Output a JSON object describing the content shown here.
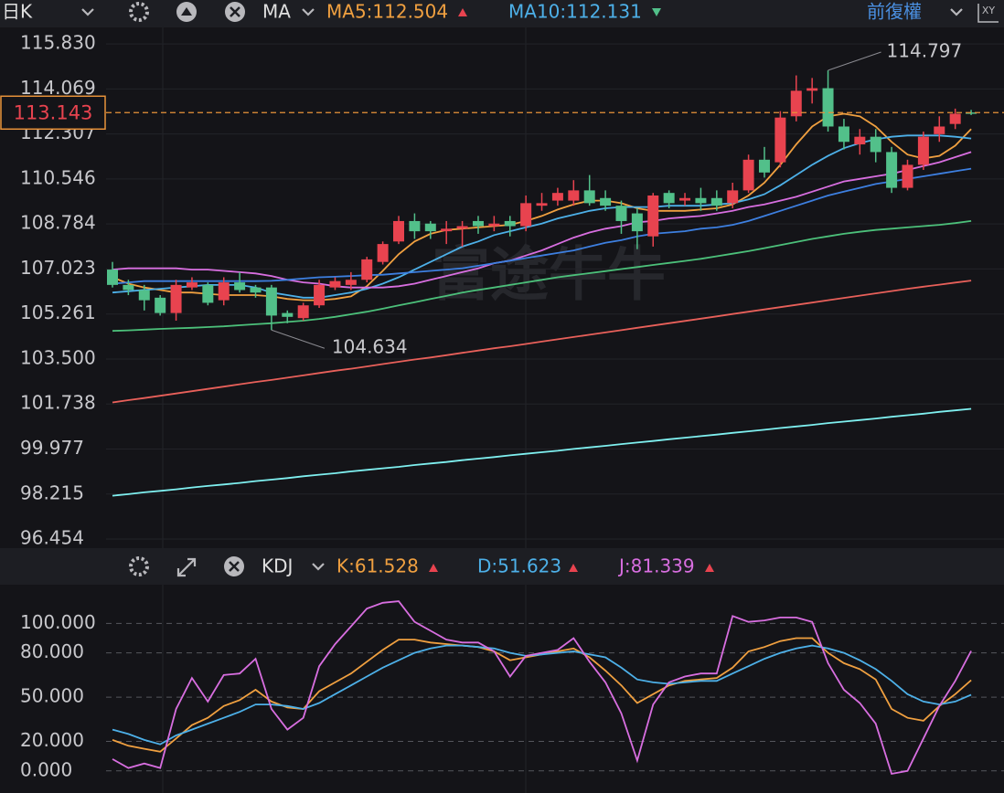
{
  "toolbar": {
    "period": "日K",
    "indicator": "MA",
    "ma5": "MA5:112.504",
    "ma10": "MA10:112.131",
    "adjust": "前復權",
    "xy": "XY"
  },
  "watermark": "富途牛牛",
  "indicator_bar": {
    "name": "KDJ",
    "k": "K:61.528",
    "d": "D:51.623",
    "j": "J:81.339"
  },
  "chart_data": [
    {
      "type": "candlestick",
      "ylim": [
        96.454,
        116.3
      ],
      "yticks": [
        {
          "value": 115.83,
          "label": "115.830"
        },
        114.069,
        112.307,
        110.546,
        108.784,
        107.023,
        105.261,
        {
          "value": 103.5,
          "label": "103.500"
        },
        101.738,
        99.977,
        98.215,
        96.454
      ],
      "current": 113.143,
      "high_label": 114.797,
      "low_label": 104.634,
      "up_color": "#e8434f",
      "down_color": "#52c08a",
      "current_color": "#e8933a",
      "open": [
        107.0,
        106.4,
        106.2,
        105.9,
        105.3,
        106.3,
        106.4,
        105.8,
        106.5,
        106.3,
        106.3,
        105.3,
        105.1,
        105.6,
        106.3,
        106.4,
        106.6,
        107.3,
        108.1,
        108.9,
        108.8,
        108.5,
        108.6,
        108.9,
        108.7,
        108.9,
        108.7,
        109.5,
        109.7,
        109.7,
        110.1,
        109.8,
        109.5,
        109.2,
        108.3,
        110.0,
        109.7,
        109.8,
        109.8,
        109.6,
        110.1,
        111.3,
        111.2,
        113.0,
        114.0,
        114.1,
        112.6,
        111.9,
        112.2,
        111.6,
        110.2,
        111.1,
        112.3,
        112.7,
        113.15
      ],
      "high": [
        107.3,
        106.6,
        106.4,
        106.0,
        106.6,
        106.7,
        106.5,
        106.7,
        106.9,
        106.4,
        106.4,
        105.4,
        105.7,
        106.6,
        106.7,
        106.9,
        107.5,
        108.1,
        109.1,
        109.2,
        108.9,
        108.9,
        108.9,
        109.1,
        109.1,
        109.1,
        109.9,
        110.0,
        110.2,
        110.5,
        110.7,
        110.1,
        109.7,
        109.4,
        110.0,
        110.1,
        110.0,
        110.2,
        110.1,
        110.4,
        111.5,
        111.8,
        113.2,
        114.6,
        114.5,
        114.797,
        112.9,
        112.5,
        112.5,
        111.8,
        111.3,
        112.4,
        113.0,
        113.3,
        113.25
      ],
      "low": [
        106.3,
        106.0,
        105.4,
        105.2,
        105.0,
        106.2,
        105.6,
        105.6,
        106.1,
        105.9,
        104.634,
        104.9,
        105.0,
        105.5,
        106.2,
        106.2,
        106.5,
        107.2,
        108.0,
        108.2,
        108.2,
        108.0,
        107.9,
        108.4,
        108.5,
        108.3,
        108.5,
        109.3,
        109.5,
        109.5,
        109.5,
        109.3,
        108.4,
        107.8,
        107.9,
        109.4,
        109.5,
        109.3,
        109.3,
        109.4,
        110.0,
        110.6,
        111.0,
        112.8,
        113.5,
        112.4,
        111.7,
        111.5,
        111.2,
        110.0,
        110.1,
        110.9,
        112.0,
        112.5,
        113.05
      ],
      "close": [
        106.4,
        106.2,
        105.8,
        105.3,
        106.4,
        106.5,
        105.7,
        106.5,
        106.2,
        106.1,
        105.2,
        105.15,
        105.6,
        106.4,
        106.55,
        106.6,
        107.4,
        108.0,
        108.9,
        108.5,
        108.5,
        108.6,
        108.7,
        108.7,
        108.8,
        108.7,
        109.6,
        109.6,
        110.0,
        110.1,
        109.6,
        109.5,
        108.9,
        108.5,
        109.9,
        109.6,
        109.8,
        109.6,
        109.5,
        110.1,
        111.3,
        110.8,
        112.95,
        114.0,
        114.1,
        112.6,
        112.0,
        112.2,
        111.6,
        110.2,
        111.1,
        112.2,
        112.6,
        113.1,
        113.143
      ],
      "series": [
        {
          "color": "#f0a040",
          "values": [
            106.7,
            106.45,
            106.3,
            106.2,
            106.1,
            106.1,
            106.05,
            106.0,
            106.0,
            106.0,
            105.95,
            105.85,
            105.8,
            105.8,
            105.85,
            105.95,
            106.35,
            106.95,
            107.6,
            108.1,
            108.4,
            108.55,
            108.6,
            108.65,
            108.7,
            108.75,
            108.9,
            109.1,
            109.35,
            109.55,
            109.7,
            109.7,
            109.6,
            109.4,
            109.3,
            109.3,
            109.3,
            109.35,
            109.4,
            109.55,
            109.9,
            110.4,
            111.1,
            111.9,
            112.6,
            113.0,
            113.1,
            113.0,
            112.6,
            112.0,
            111.5,
            111.35,
            111.45,
            111.85,
            112.504
          ]
        },
        {
          "color": "#4db0e8",
          "values": [
            106.1,
            106.15,
            106.2,
            106.25,
            106.3,
            106.35,
            106.4,
            106.4,
            106.4,
            106.3,
            106.1,
            106.0,
            105.9,
            105.9,
            106.0,
            106.1,
            106.25,
            106.45,
            106.7,
            107.0,
            107.3,
            107.6,
            107.9,
            108.1,
            108.35,
            108.5,
            108.65,
            108.8,
            109.0,
            109.15,
            109.3,
            109.4,
            109.45,
            109.45,
            109.45,
            109.5,
            109.5,
            109.5,
            109.55,
            109.6,
            109.75,
            109.95,
            110.3,
            110.7,
            111.1,
            111.45,
            111.75,
            111.95,
            112.1,
            112.2,
            112.25,
            112.25,
            112.25,
            112.2,
            112.131
          ]
        },
        {
          "color": "#d86ee0",
          "values": [
            107.0,
            107.05,
            107.05,
            107.05,
            107.05,
            107.0,
            107.0,
            106.95,
            106.9,
            106.85,
            106.75,
            106.6,
            106.5,
            106.45,
            106.35,
            106.3,
            106.3,
            106.3,
            106.35,
            106.45,
            106.6,
            106.75,
            106.9,
            107.05,
            107.25,
            107.35,
            107.55,
            107.75,
            108.0,
            108.25,
            108.45,
            108.6,
            108.7,
            108.85,
            108.9,
            109.0,
            109.05,
            109.1,
            109.2,
            109.3,
            109.45,
            109.55,
            109.7,
            109.85,
            110.05,
            110.25,
            110.45,
            110.55,
            110.65,
            110.75,
            110.9,
            111.05,
            111.2,
            111.4,
            111.6
          ]
        },
        {
          "color": "#3d7fe0",
          "values": [
            106.45,
            106.5,
            106.55,
            106.55,
            106.55,
            106.55,
            106.55,
            106.55,
            106.55,
            106.55,
            106.56,
            106.6,
            106.65,
            106.7,
            106.72,
            106.75,
            106.78,
            106.8,
            106.85,
            106.9,
            106.95,
            107.0,
            107.05,
            107.15,
            107.25,
            107.35,
            107.45,
            107.55,
            107.65,
            107.75,
            107.9,
            108.05,
            108.15,
            108.3,
            108.4,
            108.45,
            108.5,
            108.6,
            108.65,
            108.75,
            108.9,
            109.1,
            109.3,
            109.5,
            109.7,
            109.9,
            110.05,
            110.2,
            110.35,
            110.45,
            110.55,
            110.65,
            110.75,
            110.85,
            110.95
          ]
        },
        {
          "color": "#4cc07a",
          "values": [
            104.6,
            104.62,
            104.65,
            104.68,
            104.7,
            104.72,
            104.75,
            104.78,
            104.82,
            104.86,
            104.9,
            104.95,
            105.0,
            105.07,
            105.15,
            105.25,
            105.35,
            105.47,
            105.6,
            105.72,
            105.85,
            105.97,
            106.1,
            106.2,
            106.3,
            106.4,
            106.5,
            106.6,
            106.7,
            106.78,
            106.86,
            106.94,
            107.02,
            107.1,
            107.18,
            107.26,
            107.34,
            107.42,
            107.52,
            107.62,
            107.72,
            107.84,
            107.96,
            108.08,
            108.2,
            108.3,
            108.4,
            108.48,
            108.55,
            108.6,
            108.65,
            108.7,
            108.75,
            108.82,
            108.9
          ]
        },
        {
          "color": "#e8605a",
          "values": [
            101.8,
            101.89,
            101.97,
            102.06,
            102.15,
            102.24,
            102.33,
            102.42,
            102.51,
            102.6,
            102.68,
            102.77,
            102.86,
            102.95,
            103.04,
            103.12,
            103.21,
            103.3,
            103.39,
            103.48,
            103.56,
            103.65,
            103.74,
            103.83,
            103.92,
            104.0,
            104.09,
            104.18,
            104.27,
            104.36,
            104.45,
            104.54,
            104.63,
            104.72,
            104.81,
            104.9,
            104.99,
            105.08,
            105.17,
            105.26,
            105.35,
            105.44,
            105.53,
            105.62,
            105.71,
            105.8,
            105.89,
            105.98,
            106.07,
            106.16,
            106.25,
            106.33,
            106.41,
            106.49,
            106.57
          ]
        },
        {
          "color": "#7ff0f0",
          "values": [
            98.15,
            98.21,
            98.28,
            98.34,
            98.4,
            98.47,
            98.53,
            98.59,
            98.65,
            98.72,
            98.78,
            98.84,
            98.91,
            98.97,
            99.03,
            99.1,
            99.16,
            99.22,
            99.28,
            99.35,
            99.41,
            99.47,
            99.54,
            99.6,
            99.66,
            99.73,
            99.79,
            99.85,
            99.91,
            99.98,
            100.04,
            100.1,
            100.17,
            100.23,
            100.29,
            100.36,
            100.42,
            100.48,
            100.54,
            100.61,
            100.67,
            100.73,
            100.8,
            100.86,
            100.92,
            100.99,
            101.05,
            101.11,
            101.17,
            101.24,
            101.3,
            101.36,
            101.43,
            101.49,
            101.55
          ]
        }
      ]
    },
    {
      "type": "line",
      "ylim": [
        -15,
        125
      ],
      "yticks": [
        {
          "value": 100,
          "label": "100.000"
        },
        {
          "value": 80,
          "label": "80.000"
        },
        {
          "value": 50,
          "label": "50.000"
        },
        {
          "value": 20,
          "label": "20.000"
        },
        {
          "value": 0,
          "label": "0.000"
        }
      ],
      "grid": true,
      "series": [
        {
          "color": "#f0a040",
          "values": [
            21,
            17,
            15,
            13,
            22,
            31,
            36,
            44,
            48,
            55,
            47,
            43,
            42,
            54,
            60,
            66,
            74,
            82,
            89,
            89,
            87,
            86,
            85,
            84,
            81,
            75,
            77,
            79,
            81,
            83,
            77,
            68,
            58,
            46,
            52,
            58,
            61,
            62,
            63,
            70,
            81,
            84,
            88,
            90,
            90,
            80,
            73,
            69,
            62,
            42,
            36,
            34,
            44,
            52,
            61.528
          ]
        },
        {
          "color": "#4db0e8",
          "values": [
            28,
            25,
            21,
            18,
            24,
            28,
            32,
            36,
            40,
            45,
            45,
            44,
            42,
            46,
            52,
            58,
            64,
            70,
            75,
            80,
            83,
            85,
            85,
            84,
            83,
            80,
            78,
            79,
            80,
            81,
            79,
            77,
            70,
            62,
            60,
            59,
            60,
            61,
            61,
            66,
            71,
            76,
            80,
            83,
            85,
            83,
            80,
            75,
            69,
            61,
            52,
            47,
            45,
            47,
            51.623
          ]
        },
        {
          "color": "#d86ee0",
          "values": [
            8,
            2,
            5,
            2,
            42,
            63,
            47,
            65,
            66,
            76,
            42,
            28,
            36,
            71,
            86,
            98,
            110,
            114,
            115,
            101,
            95,
            89,
            87,
            87,
            81,
            64,
            78,
            80,
            82,
            90,
            74,
            60,
            39,
            7,
            45,
            60,
            64,
            66,
            66,
            105,
            101,
            102,
            104,
            104,
            101,
            73,
            55,
            46,
            32,
            -2,
            0,
            22,
            44,
            61,
            81.339
          ]
        }
      ]
    }
  ]
}
